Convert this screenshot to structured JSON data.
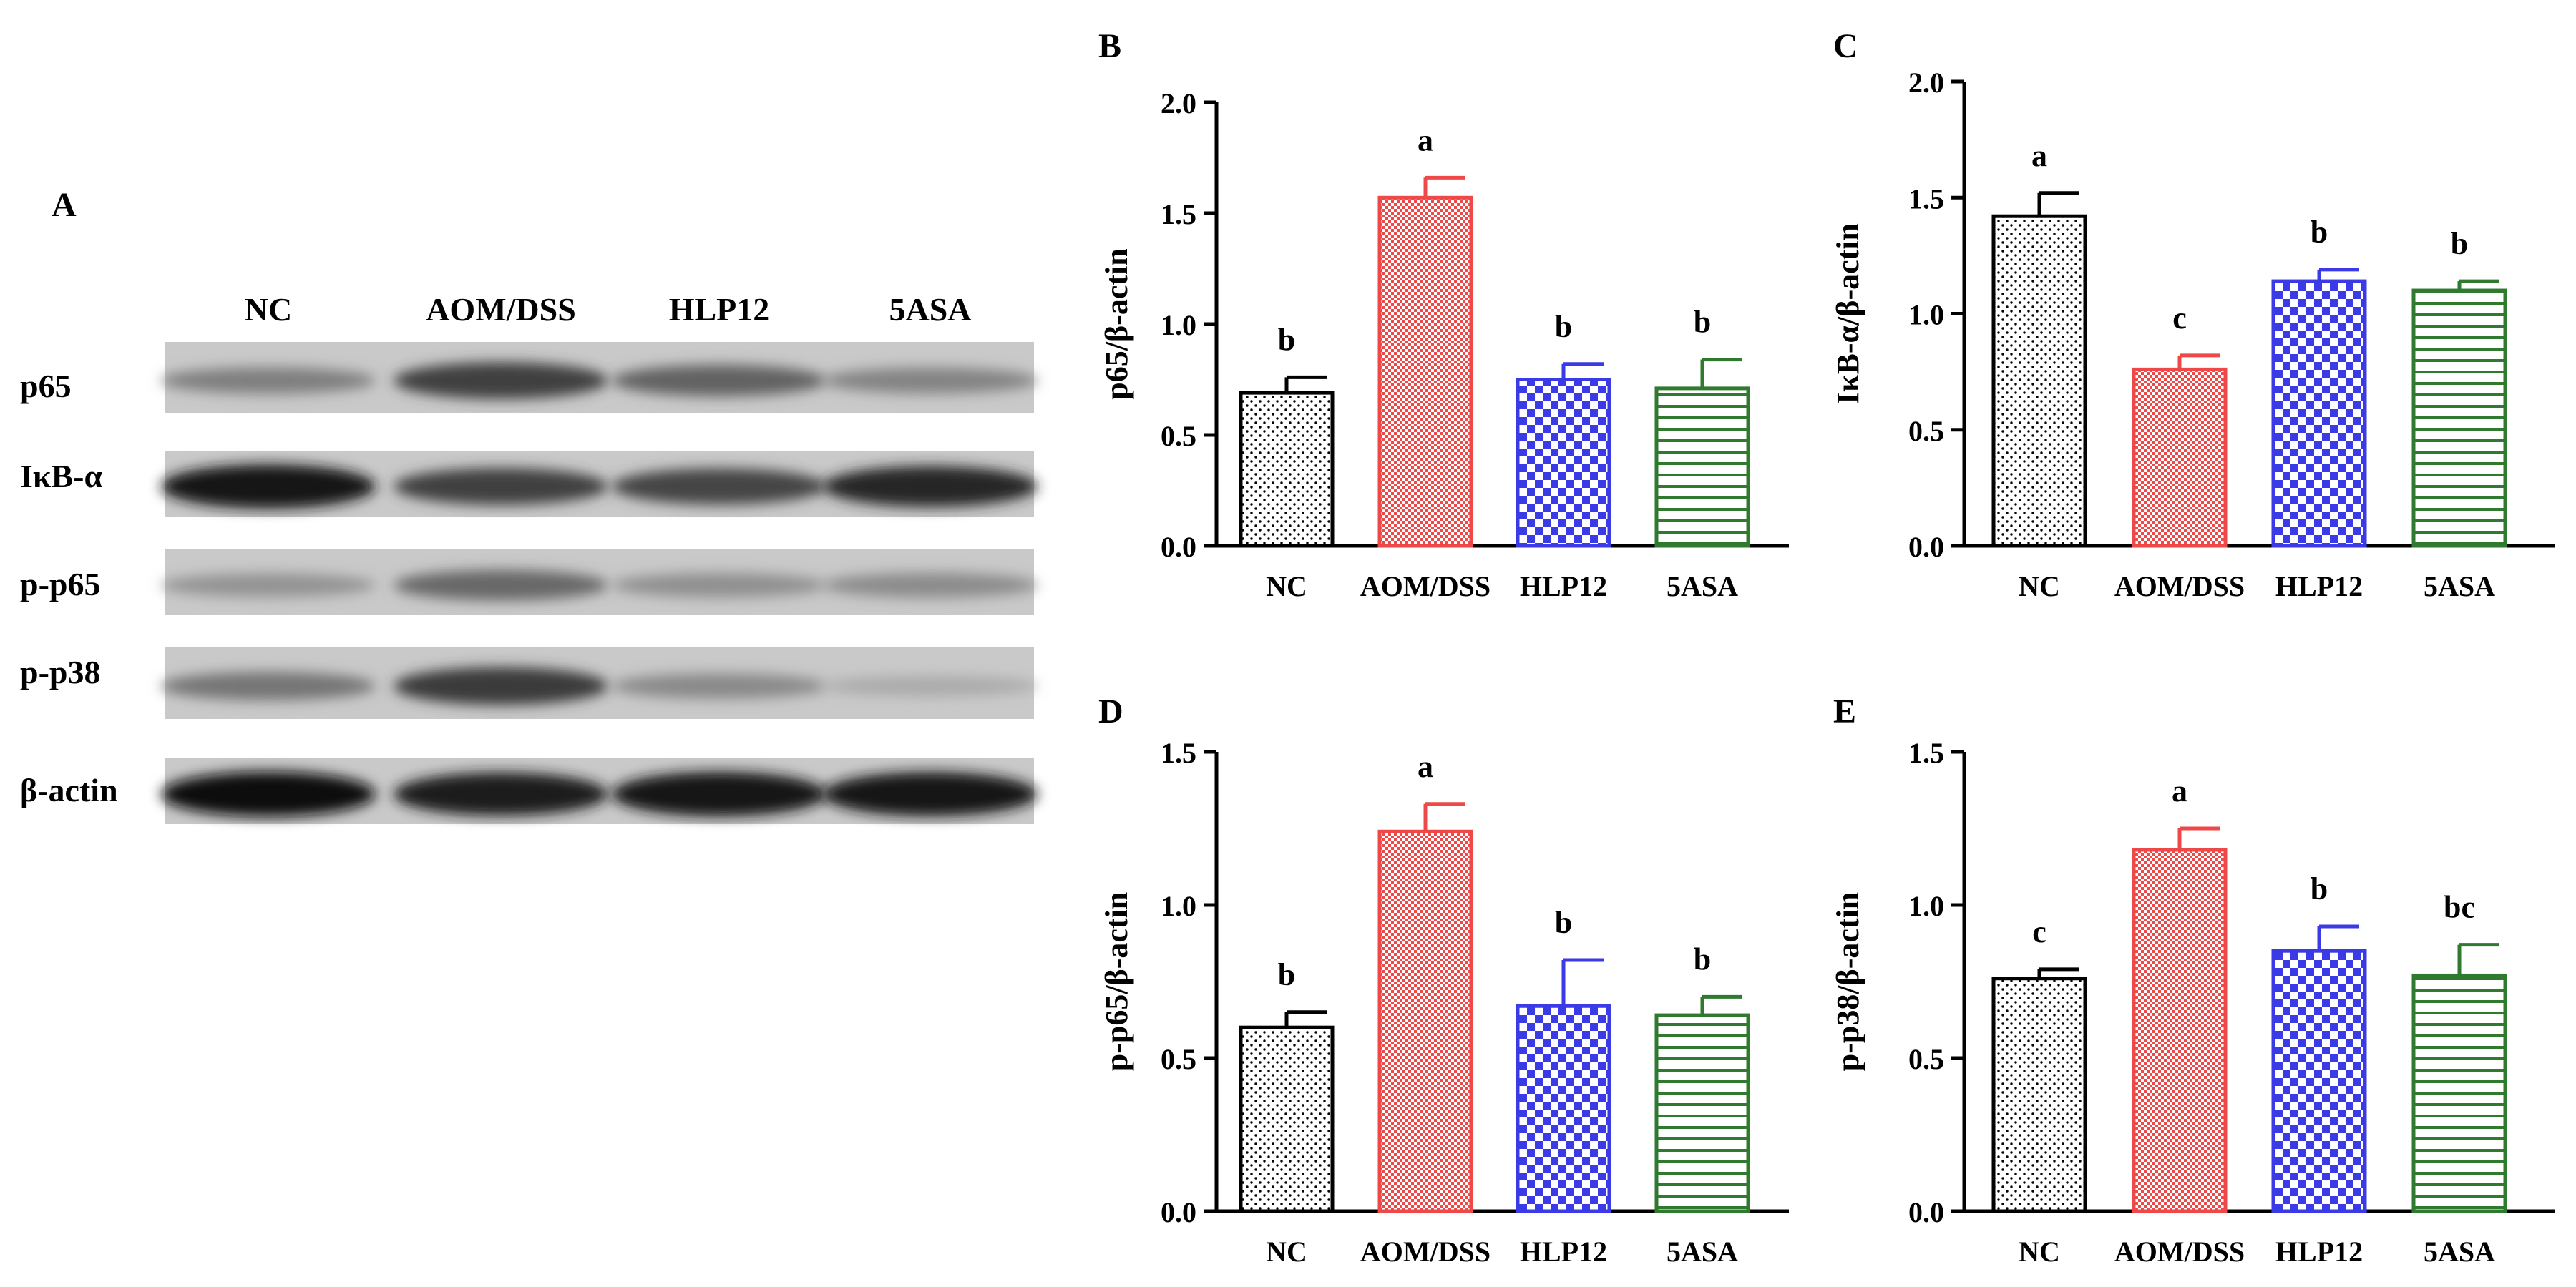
{
  "colors": {
    "nc": "#000000",
    "aom_dss": "#ef4848",
    "hlp12": "#3a3ae6",
    "asa5": "#2f7a2f"
  },
  "western_blot": {
    "panel_letter": "A",
    "lanes": [
      "NC",
      "AOM/DSS",
      "HLP12",
      "5ASA"
    ],
    "rows": [
      {
        "label": "p65",
        "intensities": [
          0.4,
          0.72,
          0.55,
          0.38
        ]
      },
      {
        "label": "IκB-α",
        "intensities": [
          0.95,
          0.72,
          0.7,
          0.85
        ]
      },
      {
        "label": "p-p65",
        "intensities": [
          0.3,
          0.52,
          0.32,
          0.34
        ]
      },
      {
        "label": "p-p38",
        "intensities": [
          0.45,
          0.75,
          0.35,
          0.18
        ]
      },
      {
        "label": "β-actin",
        "intensities": [
          0.98,
          0.92,
          0.96,
          0.95
        ]
      }
    ]
  },
  "chart_data": [
    {
      "panel": "B",
      "type": "bar",
      "ylabel": "p65/β-actin",
      "ylim": [
        0,
        2.0
      ],
      "yticks": [
        0.0,
        0.5,
        1.0,
        1.5,
        2.0
      ],
      "ytick_labels": [
        "0.0",
        "0.5",
        "1.0",
        "1.5",
        "2.0"
      ],
      "categories": [
        "NC",
        "AOM/DSS",
        "HLP12",
        "5ASA"
      ],
      "values": [
        0.69,
        1.57,
        0.75,
        0.71
      ],
      "errors": [
        0.07,
        0.09,
        0.07,
        0.13
      ],
      "sig_letters": [
        "b",
        "a",
        "b",
        "b"
      ]
    },
    {
      "panel": "C",
      "type": "bar",
      "ylabel": "IκB-α/β-actin",
      "ylim": [
        0,
        2.0
      ],
      "yticks": [
        0.0,
        0.5,
        1.0,
        1.5,
        2.0
      ],
      "ytick_labels": [
        "0.0",
        "0.5",
        "1.0",
        "1.5",
        "2.0"
      ],
      "categories": [
        "NC",
        "AOM/DSS",
        "HLP12",
        "5ASA"
      ],
      "values": [
        1.42,
        0.76,
        1.14,
        1.1
      ],
      "errors": [
        0.1,
        0.06,
        0.05,
        0.04
      ],
      "sig_letters": [
        "a",
        "c",
        "b",
        "b"
      ]
    },
    {
      "panel": "D",
      "type": "bar",
      "ylabel": "p-p65/β-actin",
      "ylim": [
        0,
        1.5
      ],
      "yticks": [
        0.0,
        0.5,
        1.0,
        1.5
      ],
      "ytick_labels": [
        "0.0",
        "0.5",
        "1.0",
        "1.5"
      ],
      "categories": [
        "NC",
        "AOM/DSS",
        "HLP12",
        "5ASA"
      ],
      "values": [
        0.6,
        1.24,
        0.67,
        0.64
      ],
      "errors": [
        0.05,
        0.09,
        0.15,
        0.06
      ],
      "sig_letters": [
        "b",
        "a",
        "b",
        "b"
      ]
    },
    {
      "panel": "E",
      "type": "bar",
      "ylabel": "p-p38/β-actin",
      "ylim": [
        0,
        1.5
      ],
      "yticks": [
        0.0,
        0.5,
        1.0,
        1.5
      ],
      "ytick_labels": [
        "0.0",
        "0.5",
        "1.0",
        "1.5"
      ],
      "categories": [
        "NC",
        "AOM/DSS",
        "HLP12",
        "5ASA"
      ],
      "values": [
        0.76,
        1.18,
        0.85,
        0.77
      ],
      "errors": [
        0.03,
        0.07,
        0.08,
        0.1
      ],
      "sig_letters": [
        "c",
        "a",
        "b",
        "bc"
      ]
    }
  ]
}
